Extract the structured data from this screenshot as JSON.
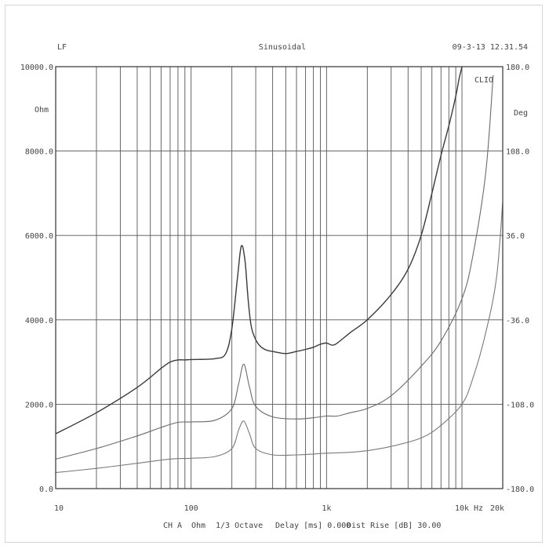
{
  "header": {
    "left": "LF",
    "center": "Sinusoidal",
    "right": "09-3-13 12.31.54"
  },
  "footer": {
    "channel": "CH A",
    "unit": "Ohm",
    "smoothing": "1/3 Octave",
    "delay": "Delay [ms] 0.000",
    "dist": "Dist Rise [dB] 30.00"
  },
  "chart_data": {
    "type": "line",
    "xscale": "log",
    "xlim": [
      10,
      20000
    ],
    "ylim_left": [
      0,
      10000
    ],
    "ylim_right": [
      -180,
      180
    ],
    "ylabel_left": "Ohm",
    "ylabel_right": "Deg",
    "corner_label": "CLIO",
    "x_unit_label": "Hz",
    "grid": true,
    "x_tick_labels": [
      {
        "x": 10,
        "label": "10"
      },
      {
        "x": 100,
        "label": "100"
      },
      {
        "x": 1000,
        "label": "1k"
      },
      {
        "x": 10000,
        "label": "10k"
      },
      {
        "x": 20000,
        "label": "20k"
      }
    ],
    "y_ticks_left": [
      {
        "v": 0,
        "label": "0.0"
      },
      {
        "v": 2000,
        "label": "2000.0"
      },
      {
        "v": 4000,
        "label": "4000.0"
      },
      {
        "v": 6000,
        "label": "6000.0"
      },
      {
        "v": 8000,
        "label": "8000.0"
      },
      {
        "v": 10000,
        "label": "10000.0"
      }
    ],
    "y_ticks_right": [
      {
        "v": -180,
        "label": "-180.0"
      },
      {
        "v": -108,
        "label": "-108.0"
      },
      {
        "v": -36,
        "label": "-36.0"
      },
      {
        "v": 36,
        "label": "36.0"
      },
      {
        "v": 108,
        "label": "108.0"
      },
      {
        "v": 180,
        "label": "180.0"
      }
    ],
    "series": [
      {
        "color": "#3a3a3a",
        "width": 1.4,
        "x": [
          10,
          20,
          40,
          60,
          70,
          80,
          90,
          100,
          150,
          180,
          200,
          220,
          235,
          250,
          265,
          280,
          310,
          350,
          400,
          500,
          600,
          700,
          800,
          900,
          1000,
          1100,
          1200,
          1500,
          2000,
          3000,
          4000,
          5000,
          6000,
          7000,
          8000,
          9000,
          9500,
          10000
        ],
        "values": [
          1300,
          1800,
          2400,
          2850,
          3000,
          3050,
          3050,
          3060,
          3080,
          3200,
          3800,
          5000,
          5750,
          5400,
          4400,
          3800,
          3450,
          3300,
          3250,
          3200,
          3250,
          3300,
          3350,
          3420,
          3450,
          3400,
          3450,
          3700,
          4000,
          4600,
          5200,
          6000,
          7000,
          7900,
          8600,
          9300,
          9700,
          10000
        ]
      },
      {
        "color": "#6a6a6a",
        "width": 1.1,
        "x": [
          10,
          20,
          40,
          60,
          80,
          100,
          150,
          200,
          225,
          245,
          270,
          300,
          400,
          600,
          800,
          1000,
          1200,
          1500,
          2000,
          3000,
          5000,
          7000,
          10000,
          12000,
          15000,
          17000
        ],
        "values": [
          700,
          950,
          1250,
          1450,
          1570,
          1580,
          1620,
          1900,
          2500,
          2950,
          2400,
          1950,
          1700,
          1650,
          1680,
          1720,
          1720,
          1800,
          1900,
          2200,
          2900,
          3500,
          4500,
          5500,
          7500,
          9800
        ]
      },
      {
        "color": "#7a7a7a",
        "width": 1.1,
        "x": [
          10,
          20,
          40,
          70,
          100,
          150,
          200,
          225,
          245,
          270,
          300,
          400,
          600,
          800,
          1000,
          1500,
          2000,
          3000,
          5000,
          7000,
          10000,
          12000,
          15000,
          18000,
          20000
        ],
        "values": [
          380,
          480,
          600,
          700,
          720,
          760,
          950,
          1400,
          1600,
          1300,
          950,
          800,
          800,
          820,
          840,
          860,
          900,
          1000,
          1200,
          1500,
          2000,
          2600,
          3700,
          5000,
          6800
        ]
      }
    ]
  }
}
